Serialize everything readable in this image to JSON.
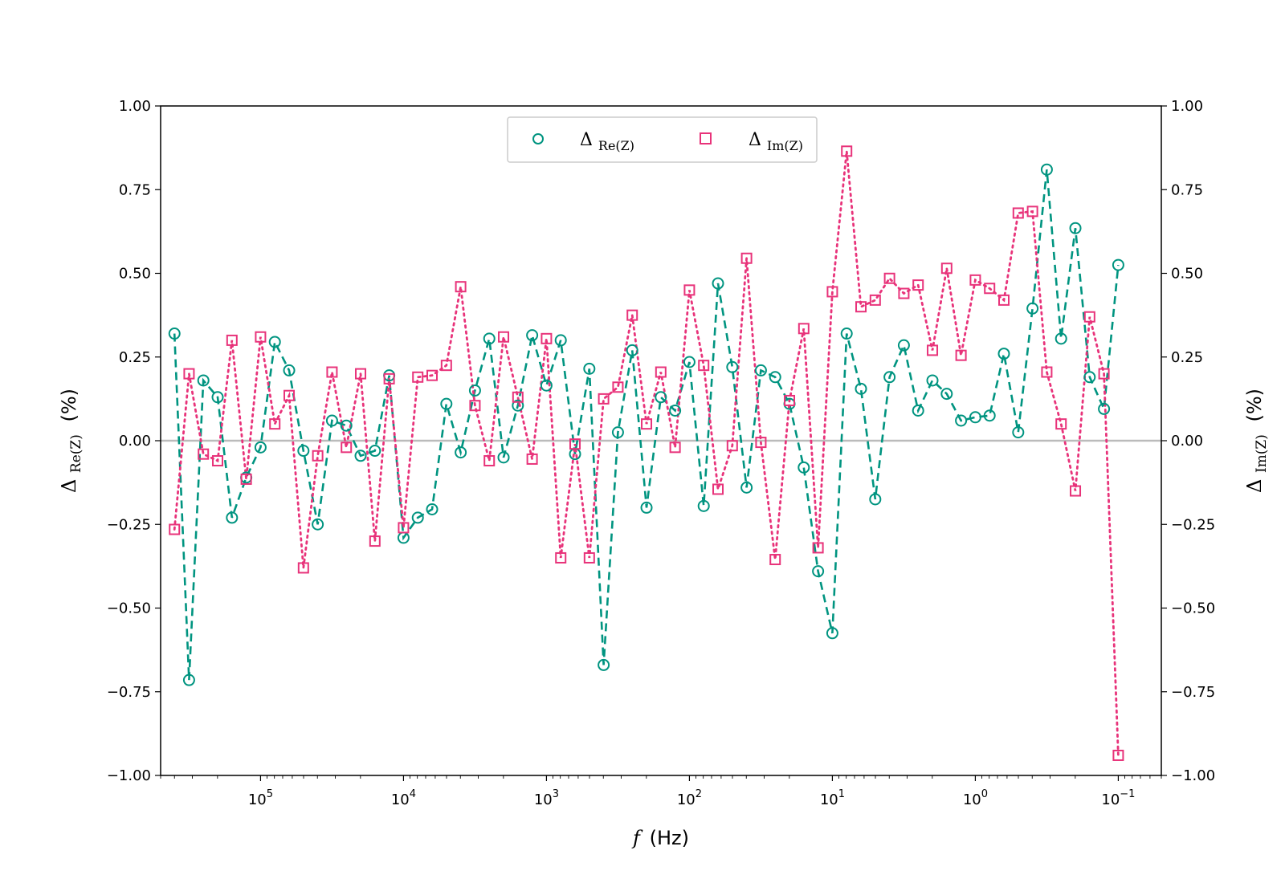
{
  "chart_data": {
    "type": "line",
    "x_scale": "log",
    "x_inverted": true,
    "xlim": [
      500000,
      0.05
    ],
    "ylim": [
      -1.0,
      1.0
    ],
    "xlabel": {
      "italic": "f",
      "rest": "(Hz)"
    },
    "ylabel_left": {
      "delta": "Δ",
      "sub": "Re(Z)",
      "rest": "(%)"
    },
    "ylabel_right": {
      "delta": "Δ",
      "sub": "Im(Z)",
      "rest": "(%)"
    },
    "x_ticks": [
      {
        "value": 100000,
        "base": "10",
        "exp": "5"
      },
      {
        "value": 10000,
        "base": "10",
        "exp": "4"
      },
      {
        "value": 1000,
        "base": "10",
        "exp": "3"
      },
      {
        "value": 100,
        "base": "10",
        "exp": "2"
      },
      {
        "value": 10,
        "base": "10",
        "exp": "1"
      },
      {
        "value": 1,
        "base": "10",
        "exp": "0"
      },
      {
        "value": 0.1,
        "base": "10",
        "exp": "−1"
      }
    ],
    "y_ticks": [
      {
        "value": 1.0,
        "label": "1.00"
      },
      {
        "value": 0.75,
        "label": "0.75"
      },
      {
        "value": 0.5,
        "label": "0.50"
      },
      {
        "value": 0.25,
        "label": "0.25"
      },
      {
        "value": 0.0,
        "label": "0.00"
      },
      {
        "value": -0.25,
        "label": "−0.25"
      },
      {
        "value": -0.5,
        "label": "−0.50"
      },
      {
        "value": -0.75,
        "label": "−0.75"
      },
      {
        "value": -1.0,
        "label": "−1.00"
      }
    ],
    "reference_line": {
      "y": 0.0,
      "color": "#bbbbbb"
    },
    "legend": {
      "position": "upper-center",
      "columns": 2
    },
    "x": [
      400000,
      316228,
      251189,
      199526,
      158489,
      125893,
      100000,
      79433,
      63096,
      50119,
      39811,
      31623,
      25119,
      19953,
      15849,
      12589,
      10000,
      7943,
      6310,
      5012,
      3981,
      3162,
      2512,
      1995,
      1585,
      1259,
      1000,
      794.3,
      631.0,
      501.2,
      398.1,
      316.2,
      251.2,
      199.5,
      158.5,
      125.9,
      100,
      79.43,
      63.1,
      50.12,
      39.81,
      31.62,
      25.12,
      19.95,
      15.85,
      12.59,
      10,
      7.943,
      6.31,
      5.012,
      3.981,
      3.162,
      2.512,
      1.995,
      1.585,
      1.259,
      1,
      0.7943,
      0.631,
      0.5012,
      0.3981,
      0.3162,
      0.2512,
      0.1995,
      0.1585,
      0.1259,
      0.1
    ],
    "series": [
      {
        "name_delta": "Δ",
        "name_sub": "Re(Z)",
        "color": "#009480",
        "marker": "circle",
        "line": "dashed",
        "values": [
          0.32,
          -0.715,
          0.18,
          0.13,
          -0.23,
          -0.11,
          -0.02,
          0.295,
          0.21,
          -0.03,
          -0.25,
          0.06,
          0.045,
          -0.045,
          -0.03,
          0.195,
          -0.29,
          -0.23,
          -0.205,
          0.11,
          -0.035,
          0.15,
          0.305,
          -0.05,
          0.105,
          0.315,
          0.165,
          0.3,
          -0.04,
          0.215,
          -0.67,
          0.025,
          0.27,
          -0.2,
          0.13,
          0.09,
          0.235,
          -0.195,
          0.47,
          0.22,
          -0.14,
          0.21,
          0.19,
          0.11,
          -0.08,
          -0.39,
          -0.575,
          0.32,
          0.155,
          -0.175,
          0.19,
          0.285,
          0.09,
          0.18,
          0.14,
          0.06,
          0.07,
          0.075,
          0.26,
          0.025,
          0.395,
          0.81,
          0.305,
          0.635,
          0.19,
          0.095,
          0.525
        ]
      },
      {
        "name_delta": "Δ",
        "name_sub": "Im(Z)",
        "color": "#e8337a",
        "marker": "square",
        "line": "dotted",
        "values": [
          -0.265,
          0.2,
          -0.04,
          -0.06,
          0.3,
          -0.115,
          0.31,
          0.05,
          0.135,
          -0.38,
          -0.045,
          0.205,
          -0.02,
          0.2,
          -0.3,
          0.185,
          -0.26,
          0.19,
          0.195,
          0.225,
          0.46,
          0.105,
          -0.06,
          0.31,
          0.13,
          -0.055,
          0.305,
          -0.35,
          -0.01,
          -0.35,
          0.125,
          0.16,
          0.375,
          0.05,
          0.205,
          -0.02,
          0.45,
          0.225,
          -0.145,
          -0.015,
          0.545,
          -0.005,
          -0.355,
          0.12,
          0.335,
          -0.32,
          0.445,
          0.865,
          0.4,
          0.42,
          0.485,
          0.44,
          0.465,
          0.27,
          0.515,
          0.255,
          0.48,
          0.455,
          0.42,
          0.68,
          0.685,
          0.205,
          0.05,
          -0.15,
          0.37,
          0.2,
          -0.94
        ]
      }
    ]
  }
}
